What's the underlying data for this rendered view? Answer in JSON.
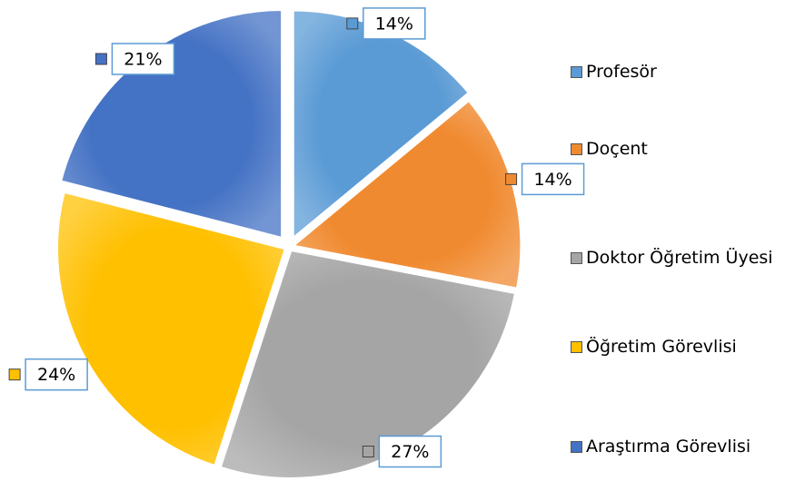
{
  "chart_data": {
    "type": "pie",
    "categories": [
      "Profesör",
      "Doçent",
      "Doktor Öğretim Üyesi",
      "Öğretim Görevlisi",
      "Araştırma Görevlisi"
    ],
    "values": [
      14,
      14,
      27,
      24,
      21
    ],
    "value_labels": [
      "14%",
      "14%",
      "27%",
      "24%",
      "21%"
    ],
    "colors": [
      "#5b9bd5",
      "#f08a30",
      "#a5a5a5",
      "#ffc000",
      "#4472c4"
    ],
    "legend": "right"
  }
}
